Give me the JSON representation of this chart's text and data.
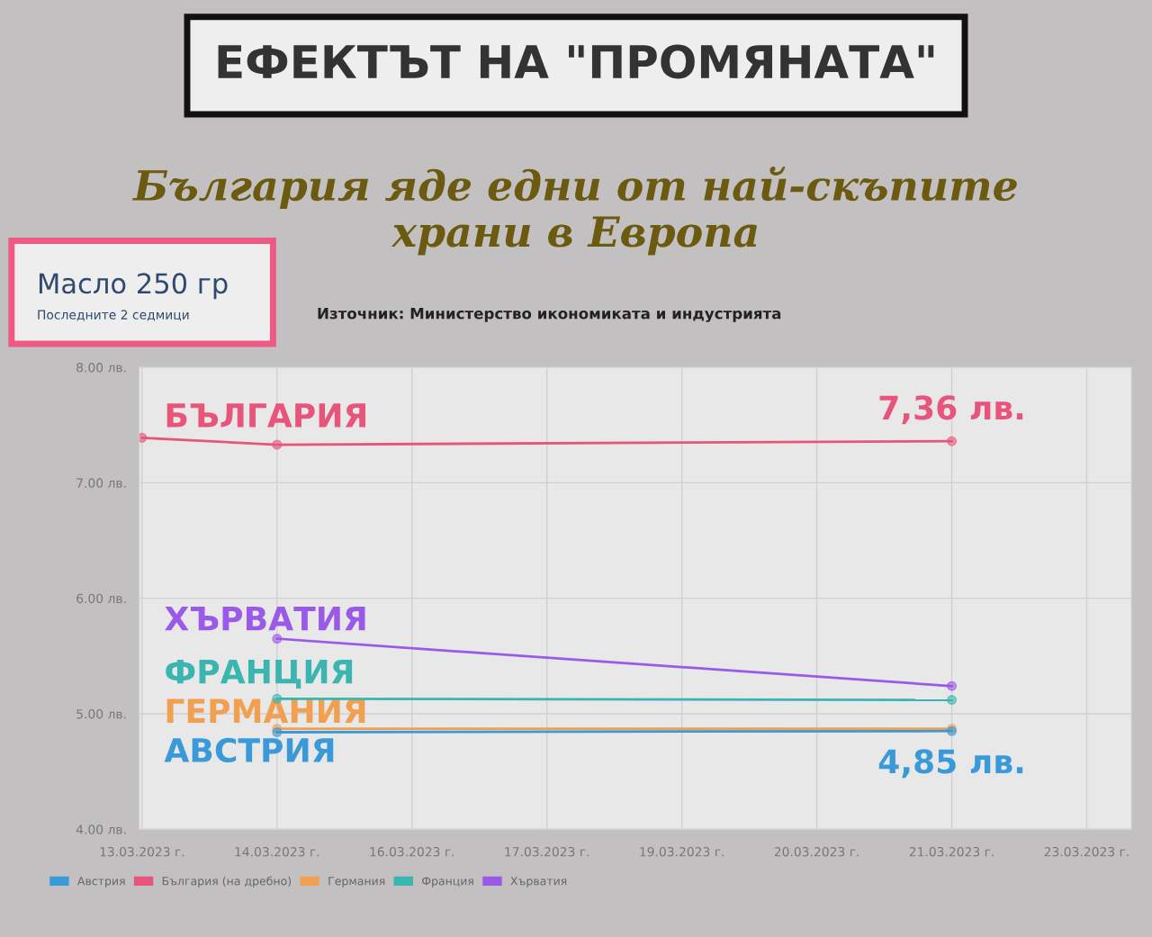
{
  "chart_data": {
    "type": "line",
    "title": "ЕФЕКТЪТ НА \"ПРОМЯНАТА\"",
    "subtitle": "България яде едни от най-скъпите\nхрани в Европа",
    "categories": [
      "13.03.2023 г.",
      "14.03.2023 г.",
      "16.03.2023 г.",
      "17.03.2023 г.",
      "19.03.2023 г.",
      "20.03.2023 г.",
      "21.03.2023 г.",
      "23.03.2023 г."
    ],
    "series": [
      {
        "name": "Австрия",
        "color": "#3a9ad9",
        "values": [
          null,
          4.84,
          null,
          null,
          null,
          null,
          4.85,
          null
        ],
        "value_labels": [
          null,
          null,
          null,
          null,
          null,
          null,
          "4,85 лв.",
          null
        ]
      },
      {
        "name": "България (на дребно)",
        "color": "#e8557a",
        "values": [
          7.39,
          7.33,
          null,
          null,
          null,
          null,
          7.36,
          null
        ],
        "value_labels": [
          null,
          null,
          null,
          null,
          null,
          null,
          "7,36 лв.",
          null
        ]
      },
      {
        "name": "Германия",
        "color": "#f0a050",
        "values": [
          null,
          4.87,
          null,
          null,
          null,
          null,
          4.87,
          null
        ]
      },
      {
        "name": "Франция",
        "color": "#3bb5b0",
        "values": [
          null,
          5.13,
          null,
          null,
          null,
          null,
          5.12,
          null
        ]
      },
      {
        "name": "Хърватия",
        "color": "#9b59e8",
        "values": [
          null,
          5.65,
          null,
          null,
          null,
          null,
          5.24,
          null
        ]
      }
    ],
    "annotations": [
      "Масло 250 гр",
      "Последните 2 седмици",
      "Източник: Министерство икономиката и индустрията",
      "АВСТРИЯ",
      "БЪЛГАРИЯ",
      "ГЕРМАНИЯ",
      "ФРАНЦИЯ",
      "ХЪРВАТИЯ"
    ],
    "ylim": [
      4,
      8
    ],
    "yticks": [
      {
        "value": 4,
        "label": "4.00 лв."
      },
      {
        "value": 5,
        "label": "5.00 лв."
      },
      {
        "value": 6,
        "label": "6.00 лв."
      },
      {
        "value": 7,
        "label": "7.00 лв."
      },
      {
        "value": 8,
        "label": "8.00 лв."
      }
    ],
    "grid": true,
    "legend": "bottom left",
    "marker": "circle",
    "line_style": "solid"
  }
}
